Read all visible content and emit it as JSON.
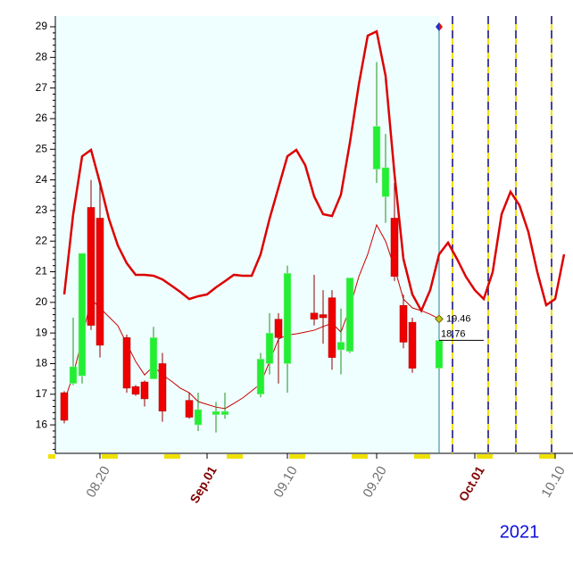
{
  "chart_data": {
    "type": "candlestick",
    "categories": [
      null,
      null,
      null,
      null,
      "08.20",
      null,
      null,
      null,
      null,
      null,
      null,
      null,
      null,
      null,
      null,
      null,
      "Sep.01",
      null,
      null,
      null,
      null,
      null,
      null,
      null,
      null,
      "09.10",
      null,
      null,
      null,
      null,
      null,
      null,
      null,
      null,
      null,
      "09.20",
      null,
      null,
      null,
      null,
      null,
      null,
      null,
      null,
      null,
      null,
      "Oct.01",
      null,
      null,
      null,
      null,
      null,
      null,
      null,
      null,
      "10.10",
      null
    ],
    "open": [
      17.05,
      17.35,
      17.6,
      23.1,
      22.75,
      null,
      null,
      18.85,
      17.25,
      17.4,
      17.5,
      18.0,
      null,
      null,
      16.8,
      16.0,
      null,
      16.33,
      16.33,
      null,
      null,
      null,
      17.0,
      18.0,
      19.45,
      18.0,
      null,
      null,
      19.65,
      19.6,
      20.15,
      18.45,
      18.4,
      null,
      null,
      24.35,
      23.45,
      22.75,
      19.9,
      19.35,
      null,
      null,
      17.85,
      null,
      null,
      null,
      null,
      null,
      null,
      null,
      null,
      null,
      null,
      null,
      null,
      null,
      null
    ],
    "high": [
      17.1,
      19.5,
      21.6,
      24.0,
      23.9,
      null,
      null,
      18.95,
      17.3,
      17.45,
      19.2,
      18.35,
      null,
      null,
      17.05,
      17.05,
      null,
      16.75,
      17.05,
      null,
      null,
      null,
      18.35,
      19.65,
      19.65,
      21.2,
      null,
      null,
      20.9,
      20.4,
      20.4,
      19.8,
      20.8,
      null,
      null,
      27.85,
      25.5,
      23.9,
      20.25,
      19.5,
      null,
      null,
      18.76,
      null,
      null,
      null,
      null,
      null,
      null,
      null,
      null,
      null,
      null,
      null,
      null,
      null,
      null
    ],
    "low": [
      16.05,
      17.3,
      17.35,
      19.1,
      18.2,
      null,
      null,
      17.05,
      16.95,
      16.6,
      17.5,
      16.1,
      null,
      null,
      16.2,
      15.8,
      null,
      15.75,
      16.2,
      null,
      null,
      null,
      16.9,
      17.65,
      17.35,
      17.05,
      null,
      null,
      19.25,
      18.65,
      17.8,
      17.65,
      18.35,
      null,
      null,
      23.9,
      22.6,
      20.7,
      18.5,
      17.7,
      null,
      null,
      17.8,
      null,
      null,
      null,
      null,
      null,
      null,
      null,
      null,
      null,
      null,
      null,
      null,
      null,
      null
    ],
    "close": [
      16.15,
      17.9,
      21.6,
      19.25,
      18.6,
      null,
      null,
      17.2,
      17.0,
      16.85,
      18.85,
      16.45,
      null,
      null,
      16.25,
      16.5,
      null,
      16.44,
      16.44,
      null,
      null,
      null,
      18.15,
      19.0,
      18.85,
      20.95,
      null,
      null,
      19.45,
      19.5,
      18.2,
      18.7,
      20.8,
      null,
      null,
      25.75,
      24.4,
      20.85,
      18.7,
      17.85,
      null,
      null,
      18.76,
      null,
      null,
      null,
      null,
      null,
      null,
      null,
      null,
      null,
      null,
      null,
      null,
      null,
      null
    ],
    "up_color": "#22ee33",
    "down_color": "#ee0000",
    "lines": [
      {
        "color": "#dd0000",
        "values": [
          20.26,
          22.88,
          24.77,
          24.98,
          23.9,
          22.73,
          21.86,
          21.28,
          20.9,
          20.9,
          20.87,
          20.75,
          20.55,
          20.34,
          20.11,
          20.2,
          20.26,
          20.49,
          20.69,
          20.9,
          20.87,
          20.87,
          21.57,
          22.73,
          23.75,
          24.77,
          24.98,
          24.48,
          23.46,
          22.88,
          22.82,
          23.52,
          25.21,
          27.11,
          28.71,
          28.85,
          27.4,
          24.19,
          21.42,
          20.26,
          19.73,
          20.4,
          21.57,
          21.95,
          21.42,
          20.84,
          20.4,
          20.11,
          20.99,
          22.88,
          23.61,
          23.17,
          22.3,
          20.99,
          19.91,
          20.11,
          21.57
        ]
      },
      {
        "color": "#cc0000",
        "values": [
          16.76,
          17.63,
          18.8,
          20.11,
          19.82,
          19.53,
          19.24,
          18.65,
          18.07,
          17.63,
          17.92,
          17.63,
          17.43,
          17.2,
          17.05,
          16.76,
          16.67,
          16.58,
          16.53,
          16.7,
          16.88,
          17.11,
          17.34,
          18.07,
          18.8,
          18.94,
          18.97,
          19.03,
          19.09,
          19.21,
          19.32,
          19.03,
          19.82,
          20.84,
          21.57,
          22.53,
          22.0,
          21.13,
          20.11,
          19.82,
          19.73,
          19.61,
          19.46,
          null,
          null,
          null,
          null,
          null,
          null,
          null,
          null,
          null,
          null,
          null,
          null,
          null,
          null
        ]
      }
    ],
    "ylim": [
      15.07,
      29.35
    ],
    "yticks": [
      16,
      17,
      18,
      19,
      20,
      21,
      22,
      23,
      24,
      25,
      26,
      27,
      28,
      29
    ],
    "year_label": "2021"
  }
}
